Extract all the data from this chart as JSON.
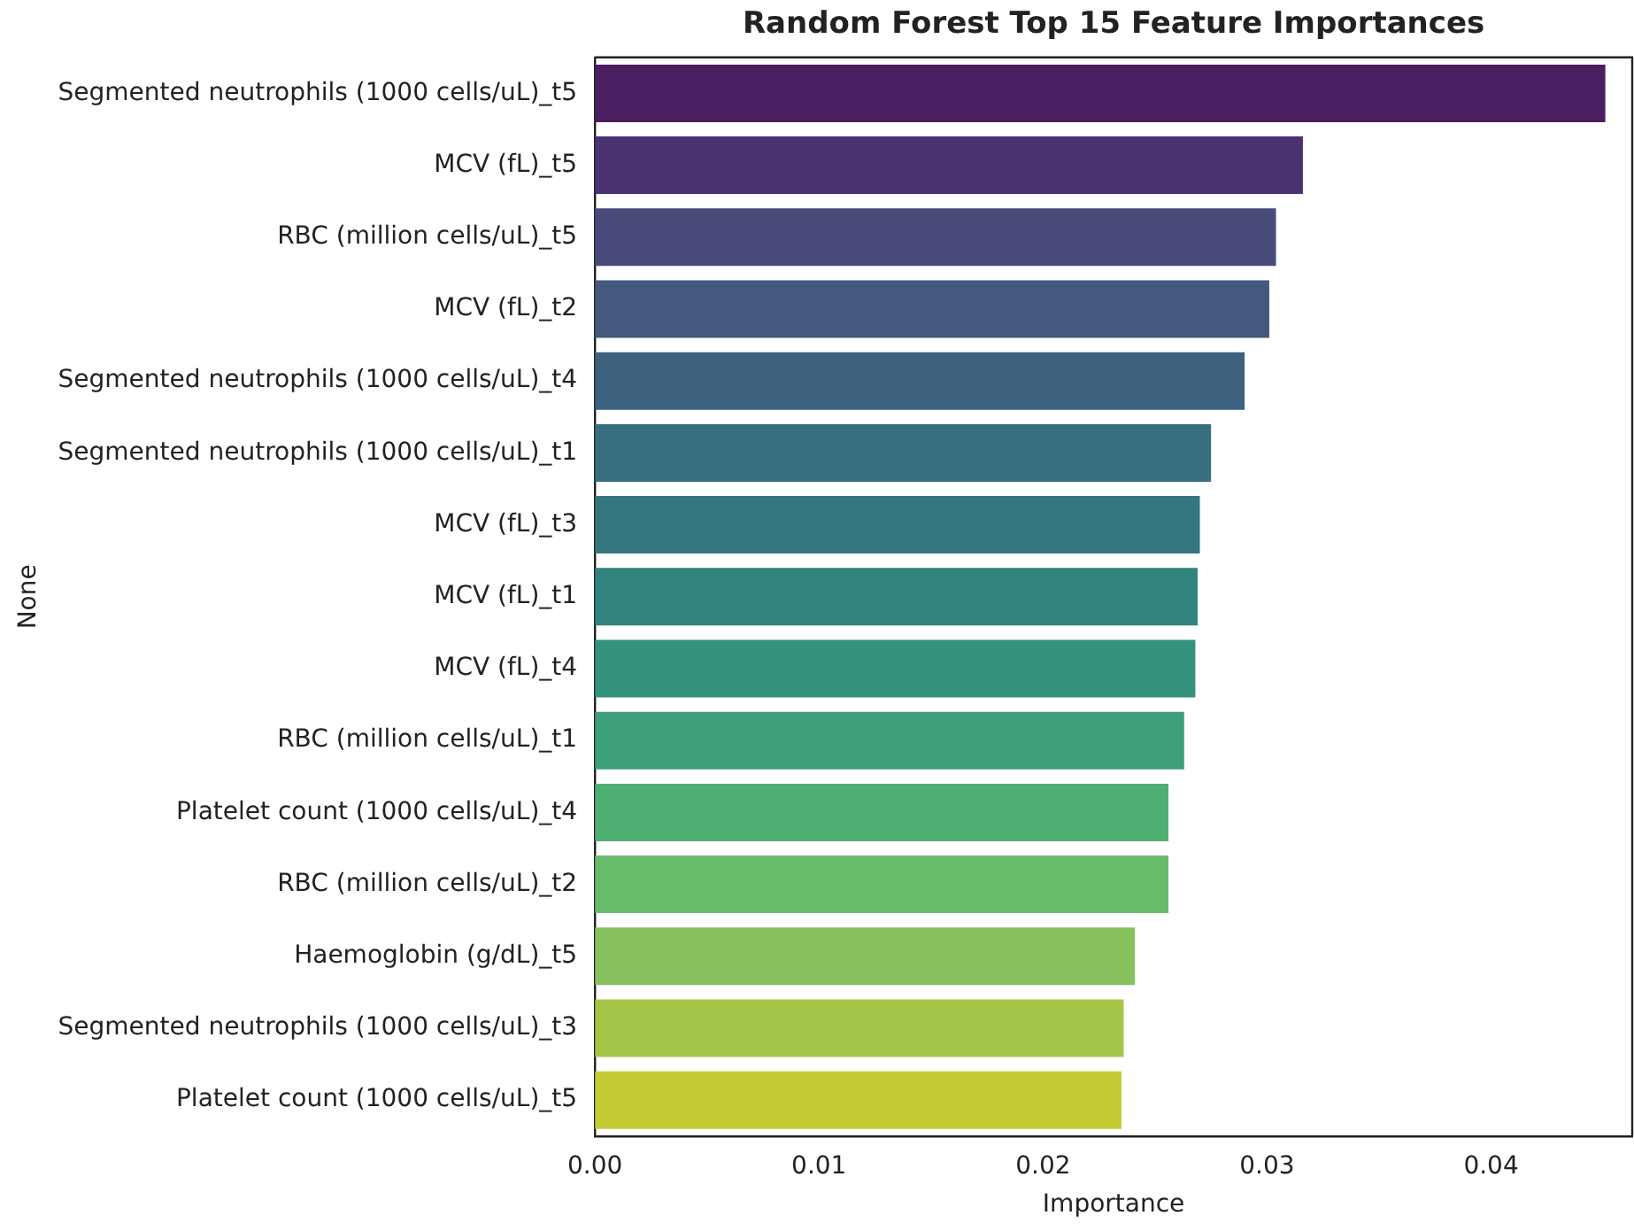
{
  "chart_data": {
    "type": "bar",
    "orientation": "horizontal",
    "title": "Random Forest Top 15 Feature Importances",
    "xlabel": "Importance",
    "ylabel": "None",
    "categories": [
      "Segmented neutrophils (1000 cells/uL)_t5",
      "MCV (fL)_t5",
      "RBC (million cells/uL)_t5",
      "MCV (fL)_t2",
      "Segmented neutrophils (1000 cells/uL)_t4",
      "Segmented neutrophils (1000 cells/uL)_t1",
      "MCV (fL)_t3",
      "MCV (fL)_t1",
      "MCV (fL)_t4",
      "RBC (million cells/uL)_t1",
      "Platelet count (1000 cells/uL)_t4",
      "RBC (million cells/uL)_t2",
      "Haemoglobin (g/dL)_t5",
      "Segmented neutrophils (1000 cells/uL)_t3",
      "Platelet count (1000 cells/uL)_t5"
    ],
    "values": [
      0.0451,
      0.0316,
      0.0304,
      0.0301,
      0.029,
      0.0275,
      0.027,
      0.0269,
      0.0268,
      0.0263,
      0.0256,
      0.0256,
      0.0241,
      0.0236,
      0.0235
    ],
    "colors": [
      "#4a1f62",
      "#4b3372",
      "#484b7a",
      "#435a7e",
      "#3d627f",
      "#386f7f",
      "#35777e",
      "#31847d",
      "#33917c",
      "#3ea07a",
      "#4fae72",
      "#69bb6c",
      "#88c25f",
      "#a5c548",
      "#c4cb33"
    ],
    "xlim": [
      0,
      0.0463
    ],
    "xticks": [
      {
        "value": 0,
        "label": "0.00"
      },
      0.01,
      0.02,
      0.03,
      0.04
    ],
    "grid": false,
    "legend": false
  }
}
